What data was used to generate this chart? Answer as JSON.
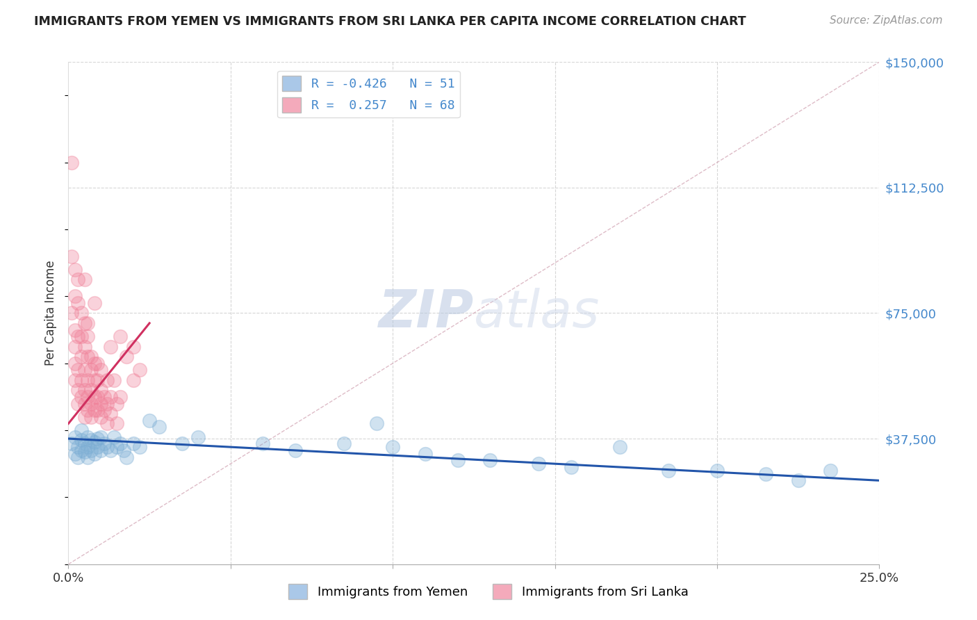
{
  "title": "IMMIGRANTS FROM YEMEN VS IMMIGRANTS FROM SRI LANKA PER CAPITA INCOME CORRELATION CHART",
  "source": "Source: ZipAtlas.com",
  "ylabel": "Per Capita Income",
  "xlim": [
    0.0,
    0.25
  ],
  "ylim": [
    0,
    150000
  ],
  "yticks": [
    0,
    37500,
    75000,
    112500,
    150000
  ],
  "xticks": [
    0.0,
    0.05,
    0.1,
    0.15,
    0.2,
    0.25
  ],
  "background_color": "#ffffff",
  "grid_color": "#cccccc",
  "yemen_color": "#7badd4",
  "srilanka_color": "#f08098",
  "yemen_trend_color": "#2255aa",
  "srilanka_trend_color": "#d03060",
  "ref_line_color": "#d0a0b0",
  "watermark_color": "#ccd8ee",
  "legend_entries": [
    {
      "label_r": "R = -0.426",
      "label_n": "N = 51",
      "color": "#aac8e8"
    },
    {
      "label_r": "R =  0.257",
      "label_n": "N = 68",
      "color": "#f4aabb"
    }
  ],
  "legend_bottom": [
    {
      "label": "Immigrants from Yemen",
      "color": "#aac8e8"
    },
    {
      "label": "Immigrants from Sri Lanka",
      "color": "#f4aabb"
    }
  ],
  "yemen_scatter_x": [
    0.001,
    0.002,
    0.002,
    0.003,
    0.003,
    0.004,
    0.004,
    0.004,
    0.005,
    0.005,
    0.006,
    0.006,
    0.006,
    0.007,
    0.007,
    0.008,
    0.008,
    0.009,
    0.009,
    0.01,
    0.01,
    0.011,
    0.012,
    0.013,
    0.014,
    0.015,
    0.016,
    0.017,
    0.018,
    0.02,
    0.022,
    0.025,
    0.028,
    0.035,
    0.04,
    0.06,
    0.07,
    0.085,
    0.095,
    0.1,
    0.11,
    0.12,
    0.13,
    0.145,
    0.155,
    0.17,
    0.185,
    0.2,
    0.215,
    0.225,
    0.235
  ],
  "yemen_scatter_y": [
    36000,
    38000,
    33000,
    35000,
    32000,
    40000,
    37000,
    34000,
    36000,
    33500,
    35000,
    38000,
    32000,
    34000,
    37000,
    36500,
    33000,
    35000,
    37500,
    38000,
    34000,
    36000,
    35000,
    34000,
    38000,
    35000,
    36000,
    34000,
    32000,
    36000,
    35000,
    43000,
    41000,
    36000,
    38000,
    36000,
    34000,
    36000,
    42000,
    35000,
    33000,
    31000,
    31000,
    30000,
    29000,
    35000,
    28000,
    28000,
    27000,
    25000,
    28000
  ],
  "srilanka_scatter_x": [
    0.001,
    0.001,
    0.001,
    0.002,
    0.002,
    0.002,
    0.002,
    0.002,
    0.002,
    0.003,
    0.003,
    0.003,
    0.003,
    0.003,
    0.003,
    0.004,
    0.004,
    0.004,
    0.004,
    0.004,
    0.005,
    0.005,
    0.005,
    0.005,
    0.005,
    0.005,
    0.006,
    0.006,
    0.006,
    0.006,
    0.006,
    0.007,
    0.007,
    0.007,
    0.007,
    0.007,
    0.008,
    0.008,
    0.008,
    0.008,
    0.009,
    0.009,
    0.009,
    0.01,
    0.01,
    0.01,
    0.01,
    0.011,
    0.011,
    0.012,
    0.012,
    0.013,
    0.013,
    0.014,
    0.015,
    0.015,
    0.016,
    0.018,
    0.02,
    0.022,
    0.005,
    0.006,
    0.009,
    0.013,
    0.016,
    0.02,
    0.008,
    0.012
  ],
  "srilanka_scatter_y": [
    120000,
    92000,
    75000,
    88000,
    80000,
    70000,
    65000,
    60000,
    55000,
    85000,
    78000,
    68000,
    58000,
    52000,
    48000,
    75000,
    68000,
    62000,
    55000,
    50000,
    72000,
    65000,
    58000,
    52000,
    48000,
    44000,
    68000,
    62000,
    55000,
    50000,
    46000,
    62000,
    58000,
    52000,
    48000,
    44000,
    60000,
    55000,
    50000,
    46000,
    55000,
    50000,
    46000,
    58000,
    52000,
    48000,
    44000,
    50000,
    46000,
    55000,
    48000,
    50000,
    45000,
    55000,
    48000,
    42000,
    50000,
    62000,
    65000,
    58000,
    85000,
    72000,
    60000,
    65000,
    68000,
    55000,
    78000,
    42000
  ],
  "yemen_trend_x": [
    0.0,
    0.25
  ],
  "yemen_trend_y": [
    37500,
    25000
  ],
  "srilanka_trend_x": [
    0.0,
    0.025
  ],
  "srilanka_trend_y": [
    42000,
    72000
  ],
  "ref_line_x": [
    0.0,
    0.25
  ],
  "ref_line_y": [
    0,
    150000
  ]
}
